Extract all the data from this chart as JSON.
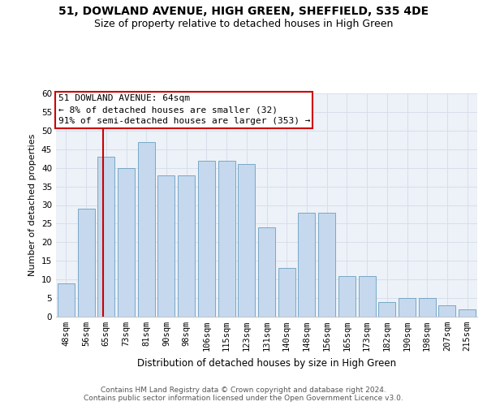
{
  "title1": "51, DOWLAND AVENUE, HIGH GREEN, SHEFFIELD, S35 4DE",
  "title2": "Size of property relative to detached houses in High Green",
  "xlabel": "Distribution of detached houses by size in High Green",
  "ylabel": "Number of detached properties",
  "categories": [
    "48sqm",
    "56sqm",
    "65sqm",
    "73sqm",
    "81sqm",
    "90sqm",
    "98sqm",
    "106sqm",
    "115sqm",
    "123sqm",
    "131sqm",
    "140sqm",
    "148sqm",
    "156sqm",
    "165sqm",
    "173sqm",
    "182sqm",
    "190sqm",
    "198sqm",
    "207sqm",
    "215sqm"
  ],
  "bar_values": [
    9,
    29,
    43,
    40,
    47,
    38,
    38,
    42,
    42,
    41,
    24,
    13,
    28,
    28,
    11,
    11,
    4,
    5,
    5,
    3,
    2
  ],
  "bar_color": "#c5d8ed",
  "bar_edge_color": "#6a9fc0",
  "vline_color": "#cc0000",
  "vline_x": 1.85,
  "annotation_text": "51 DOWLAND AVENUE: 64sqm\n← 8% of detached houses are smaller (32)\n91% of semi-detached houses are larger (353) →",
  "annotation_box_color": "#ffffff",
  "annotation_box_edge_color": "#cc0000",
  "ylim": [
    0,
    60
  ],
  "yticks": [
    0,
    5,
    10,
    15,
    20,
    25,
    30,
    35,
    40,
    45,
    50,
    55,
    60
  ],
  "grid_color": "#d4dce8",
  "background_color": "#edf1f8",
  "footer_text": "Contains HM Land Registry data © Crown copyright and database right 2024.\nContains public sector information licensed under the Open Government Licence v3.0.",
  "title1_fontsize": 10,
  "title2_fontsize": 9,
  "xlabel_fontsize": 8.5,
  "ylabel_fontsize": 8,
  "tick_fontsize": 7.5,
  "annotation_fontsize": 8,
  "footer_fontsize": 6.5
}
